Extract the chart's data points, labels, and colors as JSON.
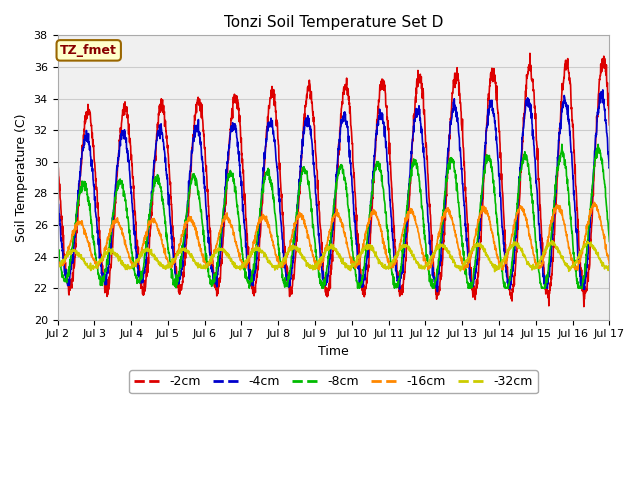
{
  "title": "Tonzi Soil Temperature Set D",
  "xlabel": "Time",
  "ylabel": "Soil Temperature (C)",
  "ylim": [
    20,
    38
  ],
  "xlim": [
    0,
    15
  ],
  "fig_facecolor": "#ffffff",
  "plot_facecolor": "#f0f0f0",
  "legend_label": "TZ_fmet",
  "legend_bg": "#ffffcc",
  "legend_border": "#996600",
  "series_colors": [
    "#dd0000",
    "#0000cc",
    "#00bb00",
    "#ff8800",
    "#cccc00"
  ],
  "series_labels": [
    "-2cm",
    "-4cm",
    "-8cm",
    "-16cm",
    "-32cm"
  ],
  "xtick_labels": [
    "Jul 2",
    "Jul 3",
    "Jul 4",
    "Jul 5",
    "Jul 6",
    "Jul 7",
    "Jul 8",
    "Jul 9",
    "Jul 10",
    "Jul 11",
    "Jul 12",
    "Jul 13",
    "Jul 14",
    "Jul 15",
    "Jul 16",
    "Jul 17"
  ],
  "xtick_positions": [
    0,
    1,
    2,
    3,
    4,
    5,
    6,
    7,
    8,
    9,
    10,
    11,
    12,
    13,
    14,
    15
  ],
  "ytick_positions": [
    20,
    22,
    24,
    26,
    28,
    30,
    32,
    34,
    36,
    38
  ],
  "grid_color": "#cccccc",
  "lw_thin": 1.2
}
